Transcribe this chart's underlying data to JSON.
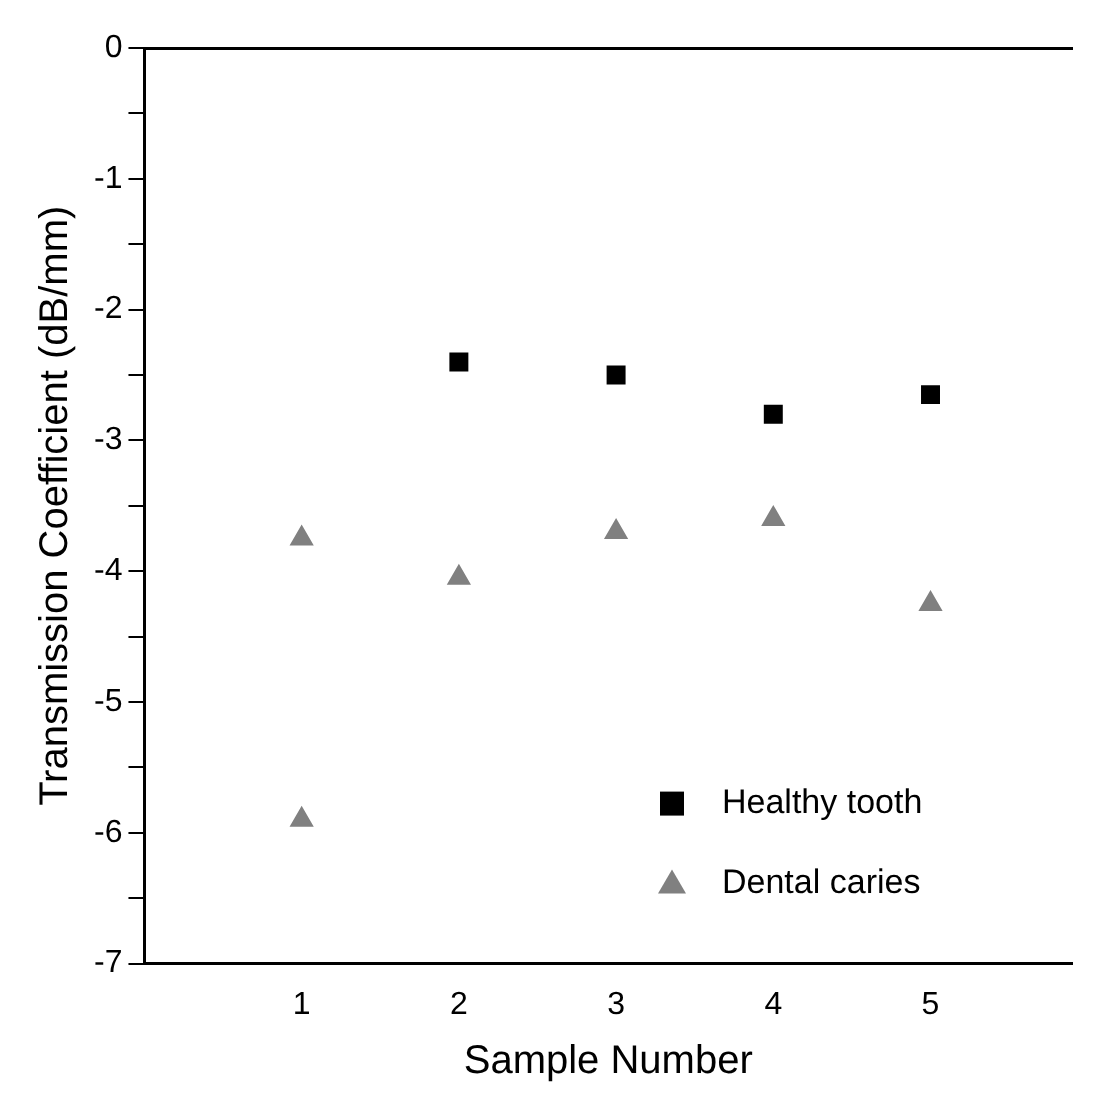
{
  "chart_data": {
    "type": "scatter",
    "xlabel": "Sample Number",
    "ylabel": "Transmission Coefficient (dB/mm)",
    "xlim": [
      0,
      5.9
    ],
    "xticks": [
      1,
      2,
      3,
      4,
      5
    ],
    "ylim": [
      -7,
      0
    ],
    "yticks": [
      -7,
      {
        "value": -6.5,
        "label": null
      },
      -6,
      {
        "value": -5.5,
        "label": null
      },
      -5,
      {
        "value": -4.5,
        "label": null
      },
      -4,
      {
        "value": -3.5,
        "label": null
      },
      -3,
      {
        "value": -2.5,
        "label": null
      },
      -2,
      {
        "value": -1.5,
        "label": null
      },
      -1,
      {
        "value": -0.5,
        "label": null
      },
      0
    ],
    "grid": false,
    "legend": "bottom right",
    "series": [
      {
        "name": "Healthy tooth",
        "color": "#000000",
        "marker": "square",
        "x": [
          2,
          3,
          4,
          5
        ],
        "values": [
          -2.4,
          -2.5,
          -2.8,
          -2.65
        ]
      },
      {
        "name": "Dental caries",
        "color": "#808080",
        "marker": "triangle",
        "x": [
          1,
          1,
          2,
          3,
          4,
          5
        ],
        "values": [
          -3.75,
          -5.9,
          -4.05,
          -3.7,
          -3.6,
          -4.25
        ]
      }
    ]
  }
}
